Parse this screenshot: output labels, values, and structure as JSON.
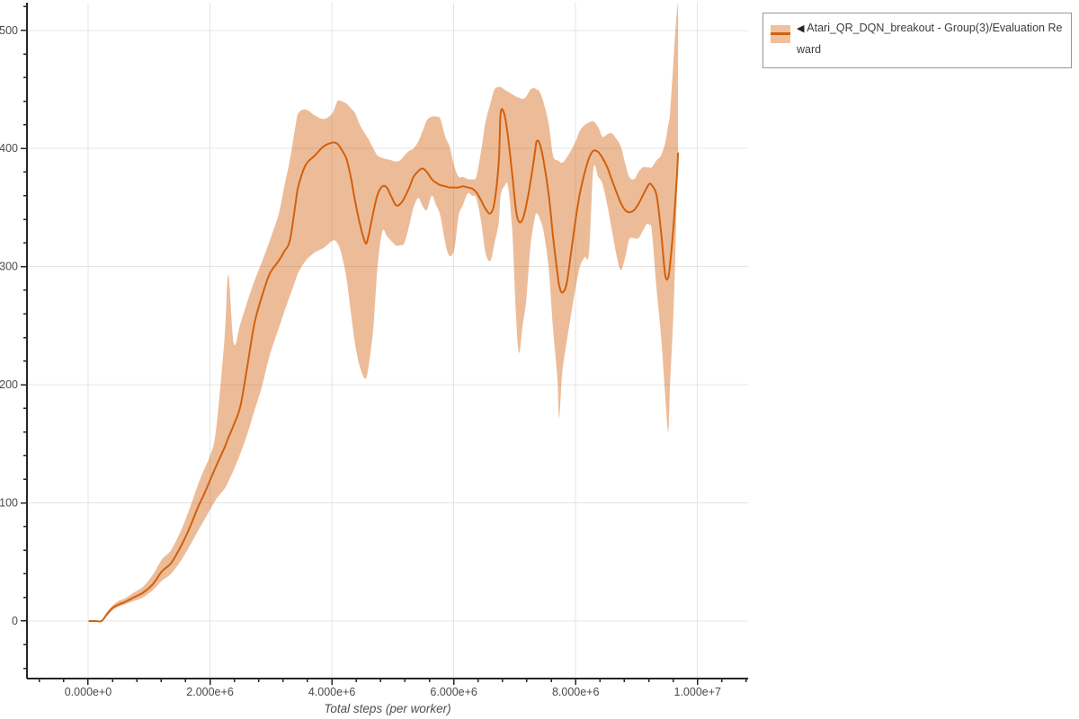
{
  "legend": {
    "marker": "◀",
    "label": "Atari_QR_DQN_breakout - Group(3)/Evaluation Reward"
  },
  "axes": {
    "x_title": "Total steps (per worker)",
    "x_domain": [
      -1003000,
      10830000
    ],
    "y_domain": [
      -48.7,
      523.4
    ],
    "x_minor_step": 400000,
    "y_minor_step": 20,
    "grid": true,
    "x_ticks": [
      {
        "v": 0,
        "label": "0.000e+0"
      },
      {
        "v": 2000000,
        "label": "2.000e+6"
      },
      {
        "v": 4000000,
        "label": "4.000e+6"
      },
      {
        "v": 6000000,
        "label": "6.000e+6"
      },
      {
        "v": 8000000,
        "label": "8.000e+6"
      },
      {
        "v": 10000000,
        "label": "1.000e+7"
      }
    ],
    "y_ticks": [
      {
        "v": 0,
        "label": "0"
      },
      {
        "v": 100,
        "label": "100"
      },
      {
        "v": 200,
        "label": "200"
      },
      {
        "v": 300,
        "label": "300"
      },
      {
        "v": 400,
        "label": "400"
      },
      {
        "v": 500,
        "label": "500"
      }
    ]
  },
  "colors": {
    "line": "#d2600c",
    "band": "#d2600c",
    "band_opacity": 0.42,
    "grid": "#e4e4e4",
    "spine": "#262626",
    "tick_label": "#4a4a4a",
    "axis_title": "#4d4d4d",
    "legend_border": "#979797",
    "legend_text": "#3d3d3d"
  },
  "chart_data": {
    "type": "line",
    "series_name": "Atari_QR_DQN_breakout - Group(3)/Evaluation Reward",
    "xlabel": "Total steps (per worker)",
    "ylabel": "",
    "legend_position": "top-right",
    "x_unit": "steps",
    "x_steps_millions": [
      0.02,
      0.12,
      0.22,
      0.3,
      0.4,
      0.5,
      0.6,
      0.75,
      0.9,
      1.06,
      1.21,
      1.36,
      1.51,
      1.65,
      1.8,
      1.9,
      2.0,
      2.1,
      2.24,
      2.3,
      2.39,
      2.5,
      2.61,
      2.73,
      2.86,
      2.98,
      3.13,
      3.22,
      3.31,
      3.4,
      3.45,
      3.57,
      3.72,
      3.87,
      4.01,
      4.09,
      4.16,
      4.24,
      4.31,
      4.38,
      4.46,
      4.55,
      4.6,
      4.68,
      4.75,
      4.83,
      4.9,
      4.97,
      5.05,
      5.12,
      5.19,
      5.27,
      5.34,
      5.42,
      5.49,
      5.56,
      5.64,
      5.71,
      5.78,
      5.86,
      5.93,
      6.01,
      6.08,
      6.15,
      6.23,
      6.3,
      6.37,
      6.45,
      6.52,
      6.6,
      6.67,
      6.74,
      6.77,
      6.83,
      6.89,
      6.96,
      7.02,
      7.07,
      7.13,
      7.19,
      7.26,
      7.33,
      7.36,
      7.41,
      7.48,
      7.56,
      7.63,
      7.7,
      7.73,
      7.78,
      7.85,
      7.92,
      8.0,
      8.07,
      8.15,
      8.22,
      8.29,
      8.37,
      8.44,
      8.52,
      8.59,
      8.67,
      8.74,
      8.81,
      8.88,
      8.96,
      9.03,
      9.1,
      9.17,
      9.21,
      9.25,
      9.33,
      9.4,
      9.47,
      9.52,
      9.55,
      9.6,
      9.63,
      9.66,
      9.68
    ],
    "mean": [
      0,
      0,
      0,
      5,
      11,
      14,
      16,
      20,
      24,
      31,
      42,
      49,
      62,
      77,
      96,
      107,
      119,
      131,
      147,
      155,
      166,
      182,
      215,
      252,
      276,
      294,
      305,
      313,
      322,
      352,
      368,
      386,
      394,
      402,
      405,
      404,
      399,
      391,
      376,
      356,
      336,
      320,
      326,
      346,
      361,
      368,
      367,
      360,
      352,
      353,
      358,
      367,
      376,
      381,
      383,
      380,
      374,
      371,
      369,
      368,
      367,
      367,
      367,
      368,
      367,
      366,
      363,
      356,
      349,
      345,
      355,
      390,
      430,
      429,
      410,
      378,
      348,
      338,
      340,
      352,
      372,
      396,
      406,
      404,
      388,
      360,
      325,
      295,
      284,
      278,
      285,
      310,
      340,
      362,
      380,
      392,
      398,
      397,
      392,
      384,
      374,
      363,
      354,
      348,
      346,
      348,
      353,
      360,
      367,
      370,
      369,
      360,
      330,
      293,
      291,
      302,
      330,
      352,
      375,
      396
    ],
    "lower": [
      0,
      0,
      0,
      4,
      9,
      12,
      14,
      17,
      20,
      26,
      34,
      40,
      50,
      62,
      76,
      85,
      94,
      103,
      112,
      118,
      128,
      142,
      158,
      178,
      200,
      225,
      248,
      262,
      275,
      288,
      295,
      305,
      312,
      316,
      322,
      320,
      310,
      290,
      262,
      235,
      215,
      205,
      215,
      248,
      300,
      330,
      326,
      322,
      318,
      318,
      320,
      335,
      350,
      358,
      351,
      348,
      360,
      352,
      343,
      320,
      309,
      315,
      343,
      352,
      362,
      360,
      358,
      338,
      312,
      305,
      320,
      338,
      360,
      368,
      368,
      330,
      260,
      227,
      250,
      272,
      318,
      341,
      345,
      341,
      328,
      297,
      247,
      205,
      172,
      210,
      235,
      258,
      282,
      300,
      308,
      312,
      382,
      376,
      370,
      352,
      332,
      310,
      297,
      307,
      323,
      324,
      324,
      330,
      336,
      335,
      330,
      280,
      242,
      191,
      160,
      200,
      254,
      300,
      356,
      380
    ],
    "upper": [
      0,
      0,
      0,
      7,
      13,
      17,
      19,
      24,
      29,
      39,
      52,
      60,
      75,
      93,
      115,
      128,
      140,
      162,
      240,
      293,
      235,
      252,
      270,
      288,
      305,
      322,
      345,
      368,
      390,
      418,
      430,
      433,
      428,
      425,
      430,
      440,
      440,
      438,
      434,
      430,
      420,
      412,
      408,
      400,
      394,
      392,
      391,
      390,
      389,
      390,
      394,
      398,
      400,
      406,
      415,
      424,
      427,
      427,
      425,
      410,
      402,
      385,
      376,
      376,
      374,
      374,
      376,
      398,
      422,
      438,
      450,
      452,
      452,
      450,
      448,
      446,
      444,
      443,
      442,
      444,
      450,
      451,
      450,
      448,
      438,
      420,
      394,
      390,
      389,
      388,
      392,
      398,
      406,
      415,
      420,
      422,
      423,
      418,
      410,
      412,
      413,
      408,
      402,
      388,
      376,
      374,
      380,
      384,
      384,
      384,
      384,
      390,
      394,
      405,
      420,
      430,
      470,
      495,
      515,
      524
    ]
  }
}
